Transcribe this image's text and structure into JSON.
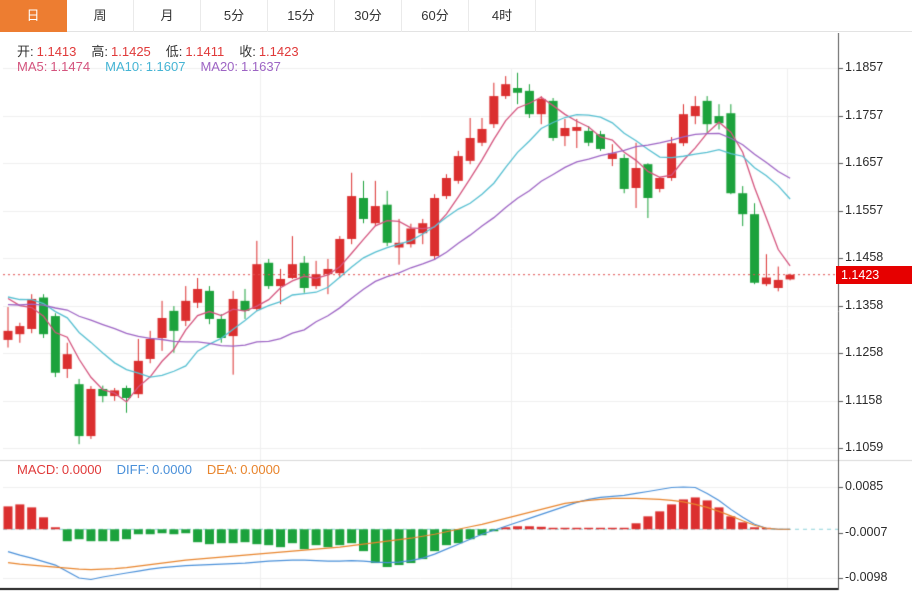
{
  "tabs": {
    "items": [
      {
        "label": "日",
        "selected": true
      },
      {
        "label": "周",
        "selected": false
      },
      {
        "label": "月",
        "selected": false
      },
      {
        "label": "5分",
        "selected": false
      },
      {
        "label": "15分",
        "selected": false
      },
      {
        "label": "30分",
        "selected": false
      },
      {
        "label": "60分",
        "selected": false
      },
      {
        "label": "4时",
        "selected": false
      }
    ]
  },
  "legend": {
    "ohlc": {
      "label_color": "#333333",
      "value_color": "#e03a3a",
      "items": [
        {
          "label": "开:",
          "value": "1.1413"
        },
        {
          "label": "高:",
          "value": "1.1425"
        },
        {
          "label": "低:",
          "value": "1.1411"
        },
        {
          "label": "收:",
          "value": "1.1423"
        }
      ]
    },
    "ma": {
      "items": [
        {
          "label": "MA5:",
          "value": "1.1474",
          "color": "#d4547e"
        },
        {
          "label": "MA10:",
          "value": "1.1607",
          "color": "#45b4d4"
        },
        {
          "label": "MA20:",
          "value": "1.1637",
          "color": "#9d64c4"
        }
      ]
    },
    "macd": {
      "items": [
        {
          "label": "MACD:",
          "value": "0.0000",
          "color": "#e03a3a"
        },
        {
          "label": "DIFF:",
          "value": "0.0000",
          "color": "#4a90d9"
        },
        {
          "label": "DEA:",
          "value": "0.0000",
          "color": "#e8842c"
        }
      ]
    }
  },
  "price_axis": {
    "ticks": [
      "1.1857",
      "1.1757",
      "1.1657",
      "1.1557",
      "1.1458",
      "1.1358",
      "1.1258",
      "1.1158",
      "1.1059"
    ],
    "last_price": "1.1423"
  },
  "macd_axis": {
    "ticks": [
      "0.0085",
      "-0.0007",
      "-0.0098"
    ]
  },
  "colors": {
    "up": "#db2f2f",
    "down": "#1ca23c",
    "ma5": "#d4547e",
    "ma10": "#56bfd1",
    "ma20": "#9d64c4",
    "diff": "#4a90d9",
    "dea": "#e8842c",
    "tab_active": "#ed7d31",
    "grid": "#efefef",
    "axis_line": "#555555",
    "separator": "#d8d8d8",
    "bottom_line": "#1a1a1a",
    "last_price_line": "#e05050",
    "last_price_tag_bg": "#e60000",
    "zero_dash": "#8fd3da"
  },
  "chart_data": [
    {
      "type": "candlestick",
      "title": "daily candles, values estimated from pixels",
      "color_rule": "red = up (close >= open), green = down",
      "ylim": [
        1.1059,
        1.1857
      ],
      "grid": true,
      "legend_position": "top-left",
      "ohlc": [
        [
          1.1286,
          1.1355,
          1.127,
          1.1305
        ],
        [
          1.1298,
          1.1322,
          1.128,
          1.1315
        ],
        [
          1.1309,
          1.1382,
          1.13,
          1.1372
        ],
        [
          1.1375,
          1.1382,
          1.129,
          1.1298
        ],
        [
          1.1336,
          1.1342,
          1.1208,
          1.1217
        ],
        [
          1.1225,
          1.128,
          1.1206,
          1.1256
        ],
        [
          1.1193,
          1.1204,
          1.1067,
          1.1084
        ],
        [
          1.1084,
          1.1189,
          1.1078,
          1.1183
        ],
        [
          1.1183,
          1.119,
          1.1155,
          1.1168
        ],
        [
          1.1168,
          1.1185,
          1.1158,
          1.118
        ],
        [
          1.1185,
          1.119,
          1.1133,
          1.1164
        ],
        [
          1.1172,
          1.1288,
          1.1164,
          1.1242
        ],
        [
          1.1246,
          1.1305,
          1.1237,
          1.1288
        ],
        [
          1.129,
          1.1368,
          1.1263,
          1.1332
        ],
        [
          1.1347,
          1.1357,
          1.1259,
          1.1305
        ],
        [
          1.1326,
          1.1399,
          1.1315,
          1.1368
        ],
        [
          1.1364,
          1.1416,
          1.1353,
          1.1393
        ],
        [
          1.1389,
          1.1399,
          1.1319,
          1.133
        ],
        [
          1.133,
          1.134,
          1.128,
          1.129
        ],
        [
          1.1294,
          1.1389,
          1.1213,
          1.1372
        ],
        [
          1.1368,
          1.1393,
          1.133,
          1.1347
        ],
        [
          1.1351,
          1.1494,
          1.1347,
          1.1445
        ],
        [
          1.1448,
          1.1456,
          1.1393,
          1.1399
        ],
        [
          1.1399,
          1.1435,
          1.1361,
          1.1414
        ],
        [
          1.1416,
          1.1504,
          1.1414,
          1.1445
        ],
        [
          1.1448,
          1.1462,
          1.1385,
          1.1395
        ],
        [
          1.1399,
          1.1452,
          1.1393,
          1.1424
        ],
        [
          1.1424,
          1.1456,
          1.1382,
          1.1435
        ],
        [
          1.1426,
          1.1504,
          1.1416,
          1.1498
        ],
        [
          1.1498,
          1.1637,
          1.1487,
          1.1588
        ],
        [
          1.1584,
          1.162,
          1.1531,
          1.154
        ],
        [
          1.1531,
          1.162,
          1.1525,
          1.1567
        ],
        [
          1.157,
          1.1599,
          1.1483,
          1.149
        ],
        [
          1.148,
          1.154,
          1.1444,
          1.149
        ],
        [
          1.1487,
          1.153,
          1.148,
          1.152
        ],
        [
          1.151,
          1.154,
          1.1487,
          1.1531
        ],
        [
          1.1462,
          1.1592,
          1.1454,
          1.1584
        ],
        [
          1.1588,
          1.1634,
          1.1582,
          1.1626
        ],
        [
          1.162,
          1.1683,
          1.1614,
          1.1672
        ],
        [
          1.1662,
          1.1752,
          1.1655,
          1.171
        ],
        [
          1.17,
          1.1752,
          1.1693,
          1.1729
        ],
        [
          1.1739,
          1.1826,
          1.1731,
          1.1798
        ],
        [
          1.1798,
          1.184,
          1.1792,
          1.1823
        ],
        [
          1.1815,
          1.1847,
          1.1781,
          1.1805
        ],
        [
          1.1809,
          1.1823,
          1.1752,
          1.176
        ],
        [
          1.176,
          1.1798,
          1.1739,
          1.1792
        ],
        [
          1.1788,
          1.1794,
          1.1704,
          1.171
        ],
        [
          1.1714,
          1.175,
          1.1693,
          1.1731
        ],
        [
          1.1725,
          1.175,
          1.1689,
          1.1733
        ],
        [
          1.1725,
          1.1735,
          1.1693,
          1.17
        ],
        [
          1.1718,
          1.1725,
          1.1683,
          1.1687
        ],
        [
          1.1666,
          1.1697,
          1.1651,
          1.1678
        ],
        [
          1.1668,
          1.1676,
          1.1594,
          1.1603
        ],
        [
          1.1605,
          1.17,
          1.1563,
          1.1647
        ],
        [
          1.1655,
          1.1657,
          1.1542,
          1.1584
        ],
        [
          1.1603,
          1.1628,
          1.1596,
          1.1626
        ],
        [
          1.1626,
          1.1712,
          1.162,
          1.1699
        ],
        [
          1.1699,
          1.1781,
          1.1693,
          1.176
        ],
        [
          1.1756,
          1.1798,
          1.1739,
          1.1777
        ],
        [
          1.1788,
          1.1798,
          1.172,
          1.1739
        ],
        [
          1.1756,
          1.1781,
          1.1728,
          1.1741
        ],
        [
          1.1762,
          1.1781,
          1.1592,
          1.1594
        ],
        [
          1.1594,
          1.1609,
          1.1525,
          1.155
        ],
        [
          1.155,
          1.1573,
          1.1403,
          1.1406
        ],
        [
          1.1403,
          1.1466,
          1.1399,
          1.1417
        ],
        [
          1.1395,
          1.144,
          1.1388,
          1.1412
        ],
        [
          1.1413,
          1.1425,
          1.1411,
          1.1423
        ]
      ],
      "ma_periods": [
        5,
        10,
        20
      ],
      "ma_seed_closes": [
        1.133,
        1.1332,
        1.1335,
        1.1338,
        1.134,
        1.1342,
        1.1345,
        1.1348,
        1.135,
        1.1352,
        1.136,
        1.1368,
        1.1375,
        1.138,
        1.1385,
        1.1388,
        1.139,
        1.1392,
        1.139,
        1.1388
      ],
      "last_price": 1.1423
    },
    {
      "type": "macd",
      "title": "MACD sub-chart, values estimated from pixels",
      "ylim": [
        -0.0098,
        0.0085
      ],
      "hist": [
        0.0046,
        0.005,
        0.0044,
        0.0024,
        0.0004,
        -0.0024,
        -0.002,
        -0.0024,
        -0.0024,
        -0.0024,
        -0.002,
        -0.001,
        -0.001,
        -0.0008,
        -0.001,
        -0.0008,
        -0.0026,
        -0.003,
        -0.0028,
        -0.0028,
        -0.0026,
        -0.003,
        -0.0032,
        -0.0036,
        -0.0028,
        -0.004,
        -0.0032,
        -0.0036,
        -0.0032,
        -0.0028,
        -0.0044,
        -0.0068,
        -0.0076,
        -0.0072,
        -0.0068,
        -0.006,
        -0.0044,
        -0.0032,
        -0.0028,
        -0.002,
        -0.0012,
        -0.0004,
        0.0004,
        0.0006,
        0.0006,
        0.0005,
        0.0003,
        0.0003,
        0.0002,
        0.0002,
        0.0001,
        0.0001,
        0.0003,
        0.0012,
        0.0026,
        0.0036,
        0.005,
        0.006,
        0.0064,
        0.0058,
        0.0044,
        0.0026,
        0.0014,
        0.0004,
        0.0001,
        0.0,
        0.0
      ],
      "diff": [
        -0.0045,
        -0.0052,
        -0.0058,
        -0.0065,
        -0.0072,
        -0.0085,
        -0.0098,
        -0.0101,
        -0.0096,
        -0.0092,
        -0.0088,
        -0.0084,
        -0.008,
        -0.0077,
        -0.0075,
        -0.0073,
        -0.0072,
        -0.0071,
        -0.007,
        -0.0069,
        -0.0068,
        -0.0066,
        -0.0064,
        -0.0063,
        -0.0062,
        -0.0062,
        -0.0063,
        -0.0064,
        -0.0064,
        -0.0063,
        -0.0064,
        -0.0066,
        -0.0067,
        -0.0066,
        -0.0063,
        -0.0058,
        -0.005,
        -0.004,
        -0.003,
        -0.002,
        -0.001,
        -0.0002,
        0.0006,
        0.0014,
        0.0022,
        0.003,
        0.0038,
        0.0046,
        0.0054,
        0.006,
        0.0064,
        0.0066,
        0.0068,
        0.0072,
        0.0076,
        0.008,
        0.0084,
        0.0085,
        0.0084,
        0.0072,
        0.0058,
        0.004,
        0.0024,
        0.001,
        0.0002,
        0.0,
        0.0
      ],
      "dea": [
        -0.0067,
        -0.007,
        -0.0072,
        -0.0074,
        -0.0076,
        -0.0078,
        -0.008,
        -0.0081,
        -0.008,
        -0.0079,
        -0.0077,
        -0.0074,
        -0.0071,
        -0.0068,
        -0.0065,
        -0.0062,
        -0.006,
        -0.0058,
        -0.0056,
        -0.0054,
        -0.0052,
        -0.005,
        -0.0048,
        -0.0046,
        -0.0044,
        -0.0042,
        -0.004,
        -0.0038,
        -0.0036,
        -0.0033,
        -0.003,
        -0.0027,
        -0.0024,
        -0.0021,
        -0.0018,
        -0.0014,
        -0.001,
        -0.0005,
        0.0,
        0.0005,
        0.001,
        0.0016,
        0.0022,
        0.0028,
        0.0034,
        0.004,
        0.0046,
        0.0052,
        0.0055,
        0.0058,
        0.006,
        0.0062,
        0.0062,
        0.0062,
        0.0061,
        0.006,
        0.0058,
        0.0055,
        0.005,
        0.0044,
        0.0036,
        0.0027,
        0.0017,
        0.0008,
        0.0002,
        0.0,
        0.0
      ]
    }
  ]
}
